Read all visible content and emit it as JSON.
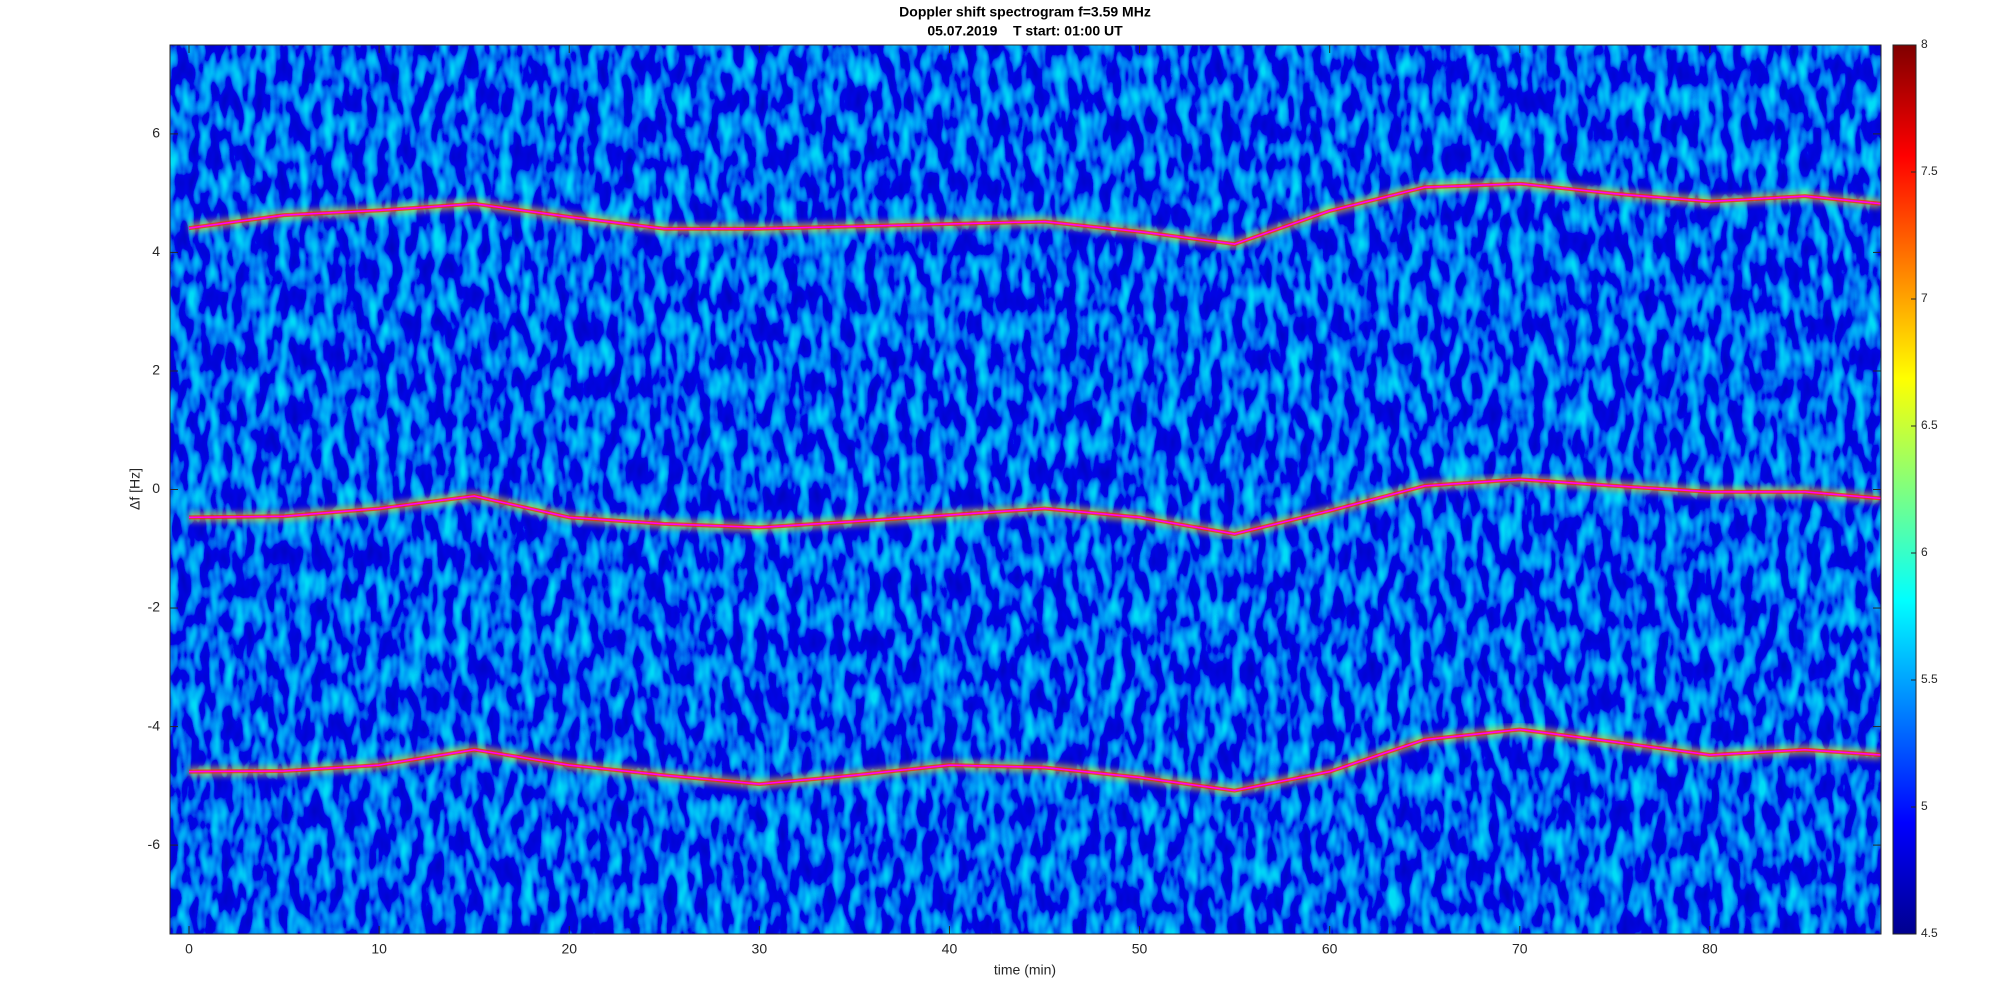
{
  "chart_data": {
    "type": "spectrogram",
    "title": "Doppler shift spectrogram f=3.59 MHz",
    "subtitle": "05.07.2019    T start: 01:00 UT",
    "x_label": "time (min)",
    "y_label": "Δf [Hz]",
    "x": [
      0,
      5,
      10,
      15,
      20,
      25,
      30,
      35,
      40,
      45,
      50,
      55,
      60,
      65,
      70,
      75,
      80,
      85,
      89
    ],
    "series": [
      {
        "color": "#ff00ff",
        "values": [
          4.41,
          4.63,
          4.71,
          4.82,
          4.6,
          4.4,
          4.4,
          4.44,
          4.48,
          4.52,
          4.35,
          4.14,
          4.7,
          5.1,
          5.16,
          4.99,
          4.86,
          4.95,
          4.82
        ]
      },
      {
        "color": "#ff00ff",
        "values": [
          -0.47,
          -0.45,
          -0.32,
          -0.11,
          -0.47,
          -0.58,
          -0.64,
          -0.54,
          -0.43,
          -0.32,
          -0.47,
          -0.75,
          -0.36,
          0.06,
          0.17,
          0.06,
          -0.04,
          -0.04,
          -0.15
        ]
      },
      {
        "color": "#ff00ff",
        "values": [
          -4.76,
          -4.75,
          -4.65,
          -4.39,
          -4.65,
          -4.82,
          -4.97,
          -4.82,
          -4.65,
          -4.69,
          -4.86,
          -5.08,
          -4.76,
          -4.22,
          -4.05,
          -4.26,
          -4.48,
          -4.39,
          -4.48
        ]
      }
    ],
    "xlim": [
      -1,
      89
    ],
    "xticks": [
      0,
      10,
      20,
      30,
      40,
      50,
      60,
      70,
      80
    ],
    "ylim": [
      -7.5,
      7.5
    ],
    "yticks": [
      -6,
      -4,
      -2,
      0,
      2,
      4,
      6
    ],
    "colormap": "jet",
    "colorbar": {
      "lim": [
        4.5,
        8
      ],
      "ticks": [
        4.5,
        5,
        5.5,
        6,
        6.5,
        7,
        7.5,
        8
      ]
    }
  }
}
